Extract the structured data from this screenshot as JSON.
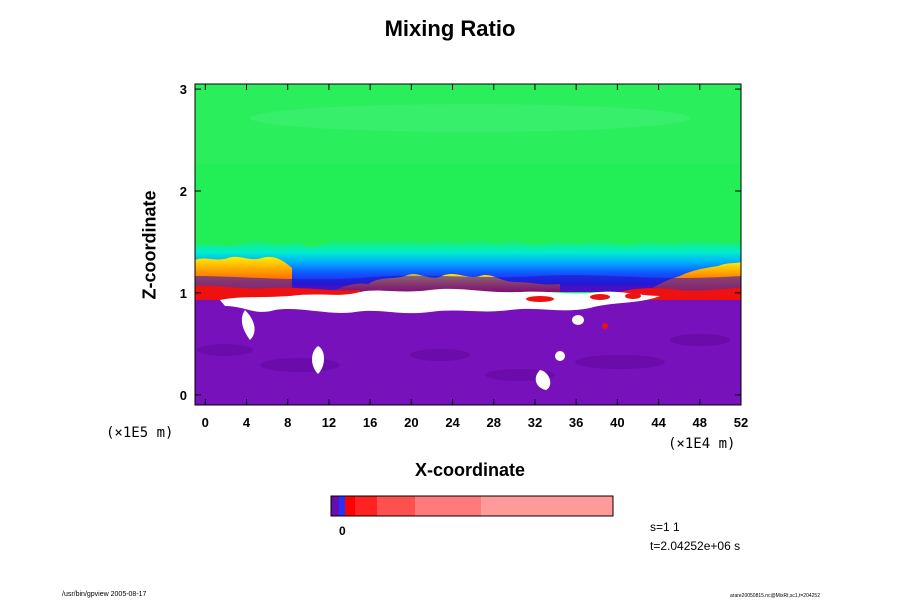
{
  "chart_data": {
    "type": "heatmap",
    "title": "Mixing Ratio",
    "xlabel": "X-coordinate",
    "ylabel": "Z-coordinate",
    "x_scale_note": "(×1E4 m)",
    "y_scale_note": "(×1E5 m)",
    "xlim": [
      -1,
      52
    ],
    "ylim": [
      -0.1,
      3.05
    ],
    "x_ticks": [
      "0",
      "4",
      "8",
      "12",
      "16",
      "20",
      "24",
      "28",
      "32",
      "36",
      "40",
      "44",
      "48",
      "52"
    ],
    "y_ticks": [
      "0",
      "1",
      "2",
      "3"
    ],
    "colorbar_label": "0",
    "colors": {
      "purple": "#7711bb",
      "blue": "#1133ff",
      "cyan": "#00ccff",
      "green": "#33ee55",
      "yellow": "#ffdd00",
      "orange": "#ff7700",
      "red": "#ee1111",
      "white": "#ffffff"
    },
    "colorbar_colors": [
      "#6a0dad",
      "#2233ff",
      "#ff0000",
      "#ff2222",
      "#ff5050",
      "#ff7a7a",
      "#ff9a9a"
    ]
  },
  "info": {
    "time_index": "s=1 1",
    "time": "t=2.04252e+06 s"
  },
  "footer": {
    "left": "/usr/bin/gpview 2005-08-17",
    "right": "arare20050815.nc@MixRt,sc1,t=204252"
  }
}
